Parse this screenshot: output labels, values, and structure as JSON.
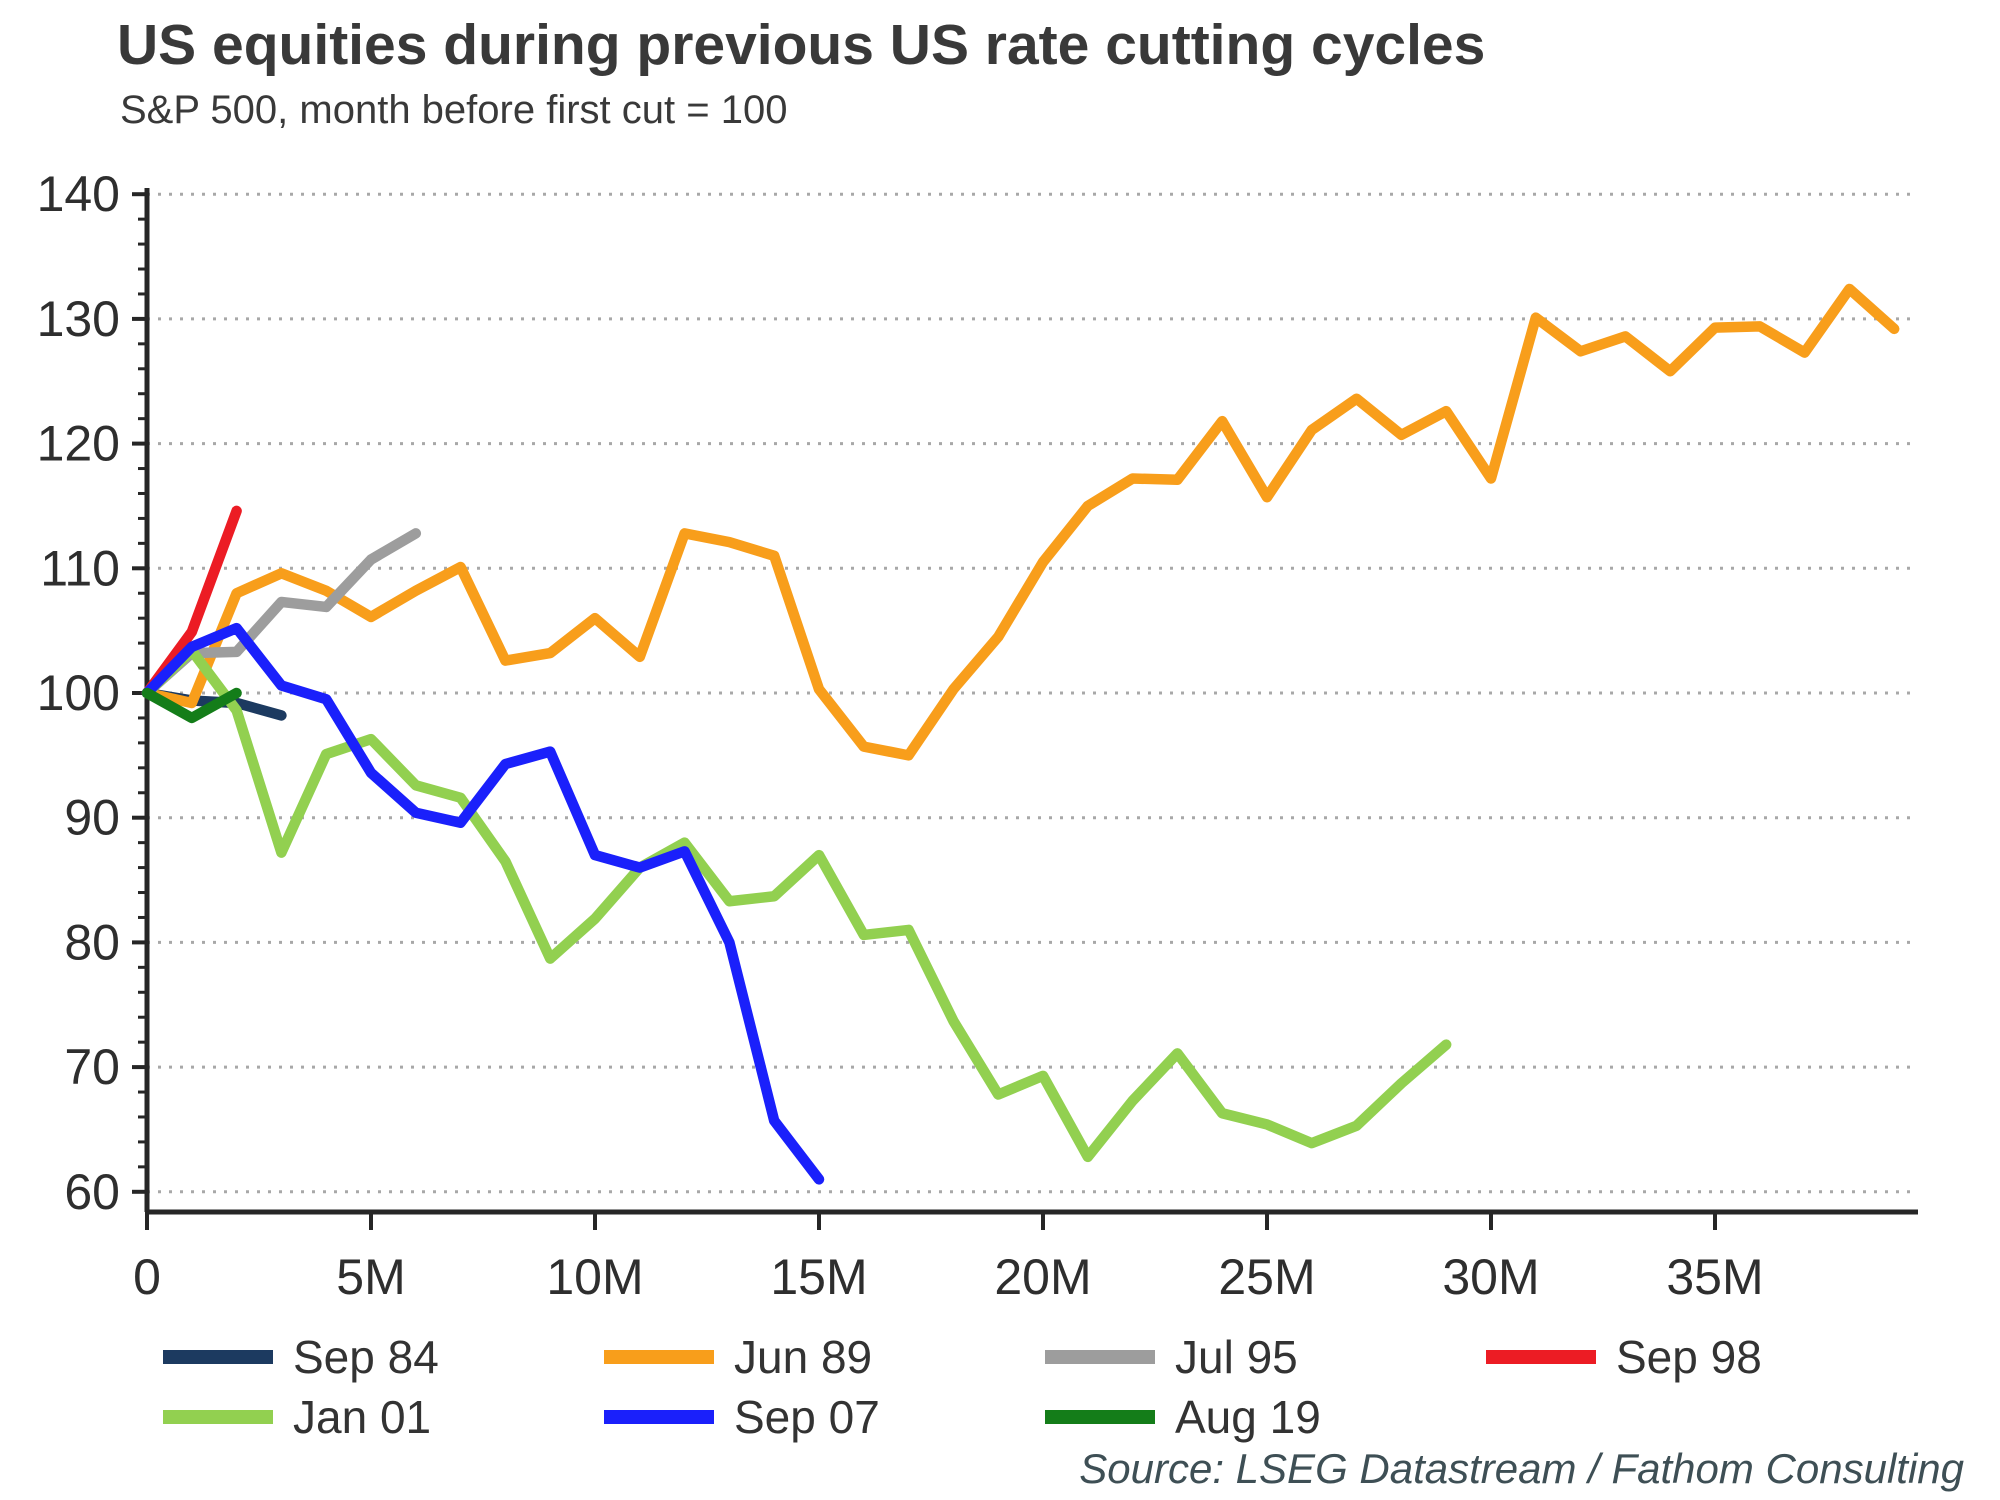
{
  "header": {
    "title": "US equities during previous US rate cutting cycles",
    "subtitle": "S&P 500, month before first cut = 100"
  },
  "source": "Source: LSEG Datastream / Fathom Consulting",
  "chart_data": {
    "type": "line",
    "title": "US equities during previous US rate cutting cycles",
    "subtitle": "S&P 500, month before first cut = 100",
    "xlabel": "",
    "ylabel": "",
    "x_unit": "months from one month before first cut",
    "ylim": [
      60,
      140
    ],
    "xlim_months": [
      0,
      39
    ],
    "grid": "horizontal-dotted",
    "legend_position": "bottom",
    "y_ticks": [
      {
        "v": 140,
        "label": "140"
      },
      {
        "v": 130,
        "label": "130"
      },
      {
        "v": 120,
        "label": "120"
      },
      {
        "v": 110,
        "label": "110"
      },
      {
        "v": 100,
        "label": "100"
      },
      {
        "v": 90,
        "label": "90"
      },
      {
        "v": 80,
        "label": "80"
      },
      {
        "v": 70,
        "label": "70"
      },
      {
        "v": 60,
        "label": "60"
      }
    ],
    "x_ticks": [
      {
        "m": 0,
        "label": "0"
      },
      {
        "m": 5,
        "label": "5M"
      },
      {
        "m": 10,
        "label": "10M"
      },
      {
        "m": 15,
        "label": "15M"
      },
      {
        "m": 20,
        "label": "20M"
      },
      {
        "m": 25,
        "label": "25M"
      },
      {
        "m": 30,
        "label": "30M"
      },
      {
        "m": 35,
        "label": "35M"
      }
    ],
    "series": [
      {
        "name": "Sep 84",
        "color": "#1c3a60",
        "values": [
          100,
          99.4,
          99.2,
          98.2
        ]
      },
      {
        "name": "Jun 89",
        "color": "#f89e1b",
        "values": [
          100,
          99.2,
          108.0,
          109.6,
          108.2,
          106.1,
          108.2,
          110.1,
          102.6,
          103.2,
          106.0,
          102.9,
          112.8,
          112.1,
          111.0,
          100.3,
          95.7,
          95.0,
          100.3,
          104.5,
          110.5,
          115.0,
          117.2,
          117.1,
          121.8,
          115.7,
          121.1,
          123.6,
          120.7,
          122.6,
          117.2,
          130.1,
          127.4,
          128.6,
          125.8,
          129.3,
          129.4,
          127.3,
          132.4,
          129.2
        ]
      },
      {
        "name": "Jul 95",
        "color": "#9d9d9d",
        "values": [
          100,
          103.2,
          103.3,
          107.3,
          106.9,
          110.7,
          112.8
        ]
      },
      {
        "name": "Sep 98",
        "color": "#ec1c24",
        "values": [
          100,
          104.9,
          114.6
        ]
      },
      {
        "name": "Jan 01",
        "color": "#92d050",
        "values": [
          100,
          103.4,
          98.6,
          87.2,
          95.1,
          96.3,
          92.6,
          91.6,
          86.5,
          78.7,
          81.9,
          86.0,
          88.0,
          83.3,
          83.7,
          87.0,
          80.6,
          81.0,
          73.7,
          67.8,
          69.3,
          62.8,
          67.3,
          71.1,
          66.3,
          65.4,
          63.9,
          65.3,
          68.7,
          71.8
        ]
      },
      {
        "name": "Sep 07",
        "color": "#1a20fb",
        "values": [
          100,
          103.7,
          105.2,
          100.6,
          99.5,
          93.6,
          90.4,
          89.6,
          94.3,
          95.3,
          87.0,
          86.0,
          87.3,
          80.0,
          65.7,
          61.0
        ]
      },
      {
        "name": "Aug 19",
        "color": "#147d19",
        "values": [
          100,
          98.0,
          100.0
        ]
      }
    ]
  }
}
